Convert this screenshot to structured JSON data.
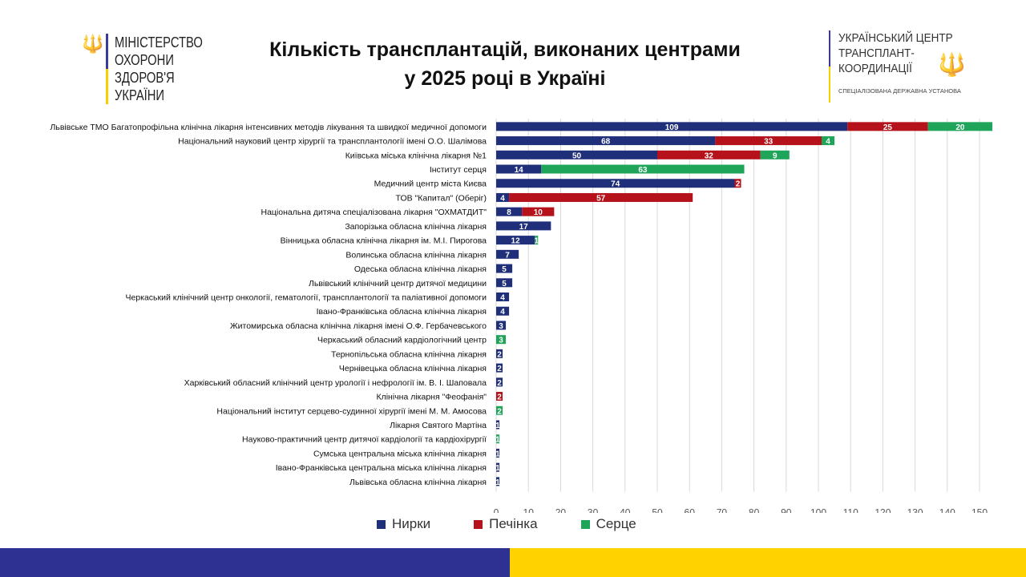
{
  "header": {
    "title_line1": "Кількість трансплантацій, виконаних центрами",
    "title_line2": "у 2025 році в Україні",
    "left_logo": [
      "МІНІСТЕРСТВО",
      "ОХОРОНИ",
      "ЗДОРОВ'Я",
      "УКРАЇНИ"
    ],
    "right_logo": [
      "УКРАЇНСЬКИЙ ЦЕНТР",
      "ТРАНСПЛАНТ-",
      "КООРДИНАЦІЇ"
    ],
    "right_logo_sub": "СПЕЦІАЛІЗОВАНА ДЕРЖАВНА УСТАНОВА"
  },
  "colors": {
    "kidney": "#1f2f7a",
    "liver": "#b5121b",
    "heart": "#1fa55a",
    "band_blue": "#2e3192",
    "band_yellow": "#ffd200"
  },
  "chart_data": {
    "type": "bar",
    "orientation": "horizontal",
    "stacked": true,
    "title": "Кількість трансплантацій, виконаних центрами у 2025 році в Україні",
    "xlim": [
      0,
      150
    ],
    "xticks": [
      0,
      10,
      20,
      30,
      40,
      50,
      60,
      70,
      80,
      90,
      100,
      110,
      120,
      130,
      140,
      150
    ],
    "grid": true,
    "legend_position": "bottom",
    "categories": [
      "Львівське ТМО Багатопрофільна клінічна лікарня інтенсивних методів лікування та швидкої медичної допомоги",
      "Національний науковий центр хірургії та трансплантології імені О.О. Шалімова",
      "Київська міська клінічна лікарня №1",
      "Інститут серця",
      "Медичний центр міста Києва",
      "ТОВ \"Капитал\" (Оберіг)",
      "Національна дитяча спеціалізована лікарня \"ОХМАТДИТ\"",
      "Запорізька обласна клінічна лікарня",
      "Вінницька обласна клінічна лікарня ім. М.І. Пирогова",
      "Волинська обласна клінічна лікарня",
      "Одеська обласна клінічна лікарня",
      "Львівський клінічний центр дитячої медицини",
      "Черкаський клінічний центр онкології, гематології, трансплантології та паліативної допомоги",
      "Івано-Франківська обласна клінічна лікарня",
      "Житомирська обласна клінічна лікарня імені О.Ф. Гербачевського",
      "Черкаський обласний кардіологічний центр",
      "Тернопільська обласна клінічна лікарня",
      "Чернівецька обласна клінічна лікарня",
      "Харківський обласний клінічний центр урології і нефрології ім. В. І. Шаповала",
      "Клінічна лікарня \"Феофанія\"",
      "Національний інститут серцево-судинної хірургії імені М. М. Амосова",
      "Лікарня Святого Мартіна",
      "Науково-практичний центр дитячої кардіології та кардіохірургії",
      "Сумська центральна міська клінічна лікарня",
      "Івано-Франківська центральна міська клінічна лікарня",
      "Львівська обласна клінічна лікарня"
    ],
    "series": [
      {
        "name": "Нирки",
        "color": "#1f2f7a",
        "values": [
          109,
          68,
          50,
          14,
          74,
          4,
          8,
          17,
          12,
          7,
          5,
          5,
          4,
          4,
          3,
          0,
          2,
          2,
          2,
          0,
          0,
          1,
          0,
          1,
          1,
          1
        ]
      },
      {
        "name": "Печінка",
        "color": "#b5121b",
        "values": [
          25,
          33,
          32,
          0,
          2,
          57,
          10,
          0,
          0,
          0,
          0,
          0,
          0,
          0,
          0,
          0,
          0,
          0,
          0,
          2,
          0,
          0,
          0,
          0,
          0,
          0
        ]
      },
      {
        "name": "Серце",
        "color": "#1fa55a",
        "values": [
          20,
          4,
          9,
          63,
          0,
          0,
          0,
          0,
          1,
          0,
          0,
          0,
          0,
          0,
          0,
          3,
          0,
          0,
          0,
          0,
          2,
          0,
          1,
          0,
          0,
          0
        ]
      }
    ]
  }
}
